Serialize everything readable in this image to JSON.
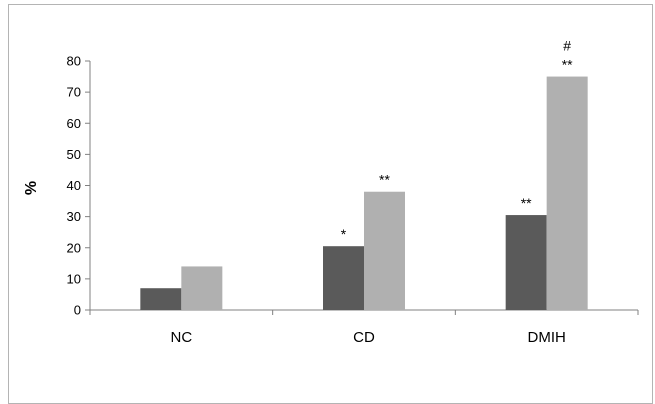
{
  "chart_data": {
    "type": "bar",
    "title": "",
    "xlabel": "",
    "ylabel": "%",
    "ylim": [
      0,
      80
    ],
    "yticks": [
      0,
      10,
      20,
      30,
      40,
      50,
      60,
      70,
      80
    ],
    "categories": [
      "NC",
      "CD",
      "DMIH"
    ],
    "grid": false,
    "legend": "none",
    "series": [
      {
        "color": "#5a5a5a",
        "values": [
          7,
          20.5,
          30.5
        ],
        "annotations": [
          "",
          "*",
          "**"
        ]
      },
      {
        "color": "#b0b0b0",
        "values": [
          14,
          38,
          75
        ],
        "annotations": [
          "",
          "**",
          "**"
        ]
      }
    ],
    "extra_annotations": [
      {
        "category_index": 2,
        "series_index": 1,
        "text": "#"
      }
    ]
  }
}
